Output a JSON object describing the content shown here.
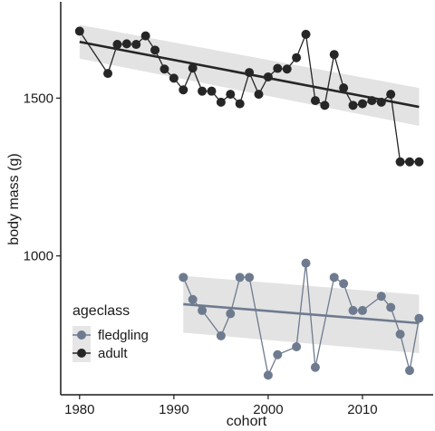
{
  "chart_data": {
    "type": "line",
    "xlabel": "cohort",
    "ylabel": "body mass (g)",
    "xlim": [
      1978,
      2017.5
    ],
    "ylim": [
      560,
      1805
    ],
    "x_ticks": [
      1980,
      1990,
      2000,
      2010
    ],
    "y_ticks": [
      1000,
      1500
    ],
    "grid": false,
    "legend": {
      "title": "ageclass",
      "placement": "bottom-left",
      "entries": [
        {
          "label": "fledgling",
          "color": "#6e7b8f"
        },
        {
          "label": "adult",
          "color": "#262626"
        }
      ]
    },
    "series": [
      {
        "name": "adult",
        "color": "#262626",
        "x": [
          1980,
          1983,
          1984,
          1985,
          1986,
          1987,
          1988,
          1989,
          1990,
          1991,
          1992,
          1993,
          1994,
          1995,
          1996,
          1997,
          1998,
          1999,
          2000,
          2001,
          2002,
          2003,
          2004,
          2005,
          2006,
          2007,
          2008,
          2009,
          2010,
          2011,
          2012,
          2013,
          2014,
          2015,
          2016
        ],
        "values": [
          1712,
          1578,
          1670,
          1672,
          1670,
          1697,
          1652,
          1592,
          1563,
          1526,
          1595,
          1522,
          1522,
          1487,
          1512,
          1482,
          1581,
          1512,
          1567,
          1594,
          1592,
          1628,
          1702,
          1492,
          1477,
          1638,
          1532,
          1477,
          1482,
          1492,
          1487,
          1512,
          1298,
          1298,
          1298
        ],
        "trend": {
          "x": [
            1980,
            2016
          ],
          "y": [
            1678,
            1472
          ],
          "ci_low_start": 1625,
          "ci_high_start": 1732,
          "ci_low_end": 1412,
          "ci_high_end": 1532
        }
      },
      {
        "name": "fledgling",
        "color": "#6e7b8f",
        "x": [
          1991,
          1992,
          1993,
          1995,
          1996,
          1997,
          1998,
          2000,
          2001,
          2003,
          2004,
          2005,
          2007,
          2008,
          2009,
          2010,
          2012,
          2013,
          2014,
          2015,
          2016
        ],
        "values": [
          932,
          862,
          827,
          747,
          817,
          932,
          932,
          622,
          687,
          712,
          977,
          647,
          932,
          912,
          827,
          827,
          872,
          837,
          752,
          637,
          802
        ],
        "trend": {
          "x": [
            1991,
            2016
          ],
          "y": [
            847,
            787
          ],
          "ci_low_start": 757,
          "ci_high_start": 937,
          "ci_low_end": 692,
          "ci_high_end": 877
        }
      }
    ]
  }
}
